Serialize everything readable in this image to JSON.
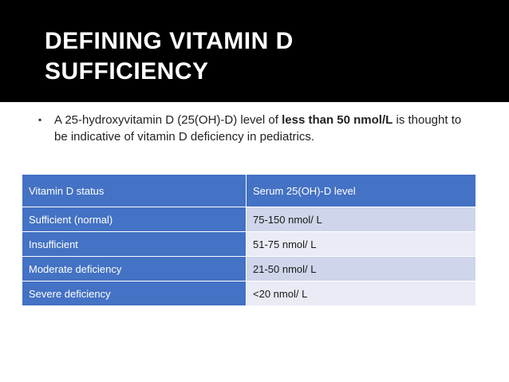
{
  "slide": {
    "title_line1": "DEFINING VITAMIN D",
    "title_line2": "SUFFICIENCY",
    "bullet_marker": "▪",
    "bullet_before": "A 25-hydroxyvitamin D (25(OH)-D) level of ",
    "bullet_bold": "less than 50 nmol/L",
    "bullet_after": " is thought to be indicative of vitamin D deficiency in pediatrics."
  },
  "table": {
    "headers": [
      "Vitamin D status",
      "Serum 25(OH)-D level"
    ],
    "rows": [
      {
        "status": "Sufficient (normal)",
        "level": "75-150 nmol/ L"
      },
      {
        "status": "Insufficient",
        "level": "51-75 nmol/ L"
      },
      {
        "status": "Moderate deficiency",
        "level": "21-50 nmol/ L"
      },
      {
        "status": "Severe deficiency",
        "level": "<20 nmol/ L"
      }
    ]
  },
  "colors": {
    "title_background": "#000000",
    "header_blue": "#4472c4",
    "row_band_dark": "#cfd5ea",
    "row_band_light": "#e9ebf5"
  }
}
